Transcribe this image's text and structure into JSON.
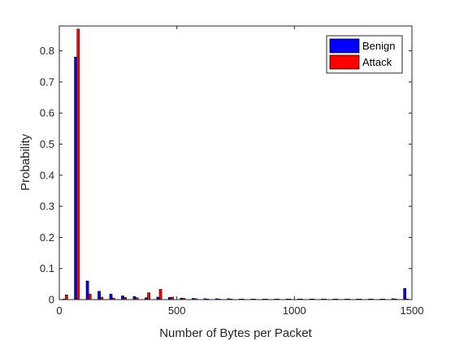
{
  "chart_data": {
    "type": "bar",
    "xlabel": "Number of Bytes per Packet",
    "ylabel": "Probability",
    "xlim": [
      0,
      1500
    ],
    "ylim": [
      0,
      0.88
    ],
    "xticks": [
      0,
      500,
      1000,
      1500
    ],
    "xtick_labels": [
      "0",
      "500",
      "1000",
      "1500"
    ],
    "yticks": [
      0,
      0.1,
      0.2,
      0.3,
      0.4,
      0.5,
      0.6,
      0.7,
      0.8
    ],
    "ytick_labels": [
      "0",
      "0.1",
      "0.2",
      "0.3",
      "0.4",
      "0.5",
      "0.6",
      "0.7",
      "0.8"
    ],
    "grid": false,
    "legend_position": "top-right",
    "bin_width": 50,
    "series": [
      {
        "name": "Benign",
        "color": "#0000ff",
        "x": [
          25,
          75,
          125,
          175,
          225,
          275,
          325,
          375,
          425,
          475,
          525,
          575,
          625,
          675,
          725,
          775,
          825,
          875,
          925,
          975,
          1025,
          1075,
          1125,
          1175,
          1225,
          1275,
          1325,
          1375,
          1425,
          1475
        ],
        "values": [
          0.002,
          0.78,
          0.06,
          0.027,
          0.018,
          0.012,
          0.01,
          0.006,
          0.008,
          0.007,
          0.005,
          0.004,
          0.003,
          0.003,
          0.003,
          0.002,
          0.002,
          0.002,
          0.002,
          0.002,
          0.002,
          0.002,
          0.002,
          0.002,
          0.002,
          0.002,
          0.002,
          0.002,
          0.003,
          0.036
        ]
      },
      {
        "name": "Attack",
        "color": "#ff0000",
        "x": [
          25,
          75,
          125,
          175,
          225,
          275,
          325,
          375,
          425,
          475,
          525,
          575,
          625,
          675,
          725,
          775,
          825,
          875,
          925,
          975,
          1025,
          1075,
          1125,
          1175,
          1225,
          1275,
          1325,
          1375,
          1425,
          1475
        ],
        "values": [
          0.015,
          0.87,
          0.018,
          0.008,
          0.005,
          0.007,
          0.006,
          0.022,
          0.033,
          0.008,
          0.004,
          0.003,
          0.002,
          0.002,
          0.002,
          0.002,
          0.002,
          0.002,
          0.002,
          0.002,
          0.002,
          0.002,
          0.002,
          0.002,
          0.002,
          0.002,
          0.002,
          0.002,
          0.002,
          0.002
        ]
      }
    ]
  }
}
